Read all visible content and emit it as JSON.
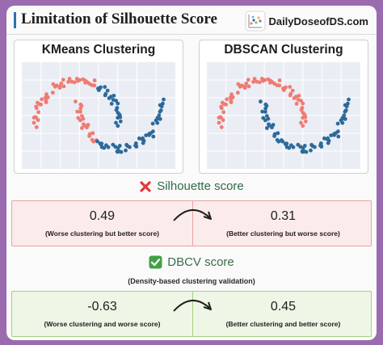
{
  "header": {
    "title": "Limitation of Silhouette Score",
    "brand": "DailyDoseofDS.com"
  },
  "panels": {
    "left_title": "KMeans Clustering",
    "right_title": "DBSCAN Clustering"
  },
  "colors": {
    "salmon": "#ef7b72",
    "blue": "#2c6a9a",
    "grid": "#e1e5ee",
    "plot_bg": "#eaedf4"
  },
  "silhouette": {
    "icon": "cross-mark-icon",
    "label": "Silhouette score",
    "left_value": "0.49",
    "left_caption": "(Worse clustering but better score)",
    "right_value": "0.31",
    "right_caption": "(Better clustering but worse score)"
  },
  "dbcv": {
    "icon": "check-mark-icon",
    "label": "DBCV score",
    "note": "(Density-based clustering validation)",
    "left_value": "-0.63",
    "left_caption": "(Worse clustering and worse score)",
    "right_value": "0.45",
    "right_caption": "(Better clustering and better score)"
  }
}
